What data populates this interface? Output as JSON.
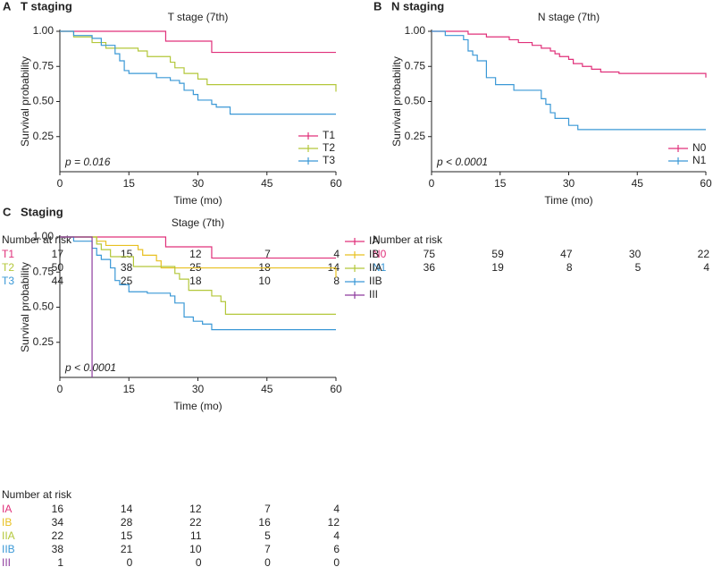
{
  "chart_data": [
    {
      "type": "step",
      "panel": "A",
      "heading": "T staging",
      "title": "T stage (7th)",
      "xlabel": "Time (mo)",
      "ylabel": "Survival probability",
      "xlim": [
        0,
        60
      ],
      "xticks": [
        0,
        15,
        30,
        45,
        60
      ],
      "ylim": [
        0,
        1
      ],
      "yticks": [
        0.25,
        {
          "value": 0.5,
          "label": "0.50"
        },
        0.75,
        {
          "value": 1,
          "label": "1.00"
        }
      ],
      "annotation": "p = 0.016",
      "legend": "lower right",
      "series": [
        {
          "name": "T1",
          "color": "#e0307a",
          "x": [
            0,
            23,
            33,
            60
          ],
          "values": [
            1,
            0.93,
            0.85,
            0.85
          ]
        },
        {
          "name": "T2",
          "color": "#b3c73a",
          "x": [
            0,
            3,
            7,
            10,
            17,
            19,
            24,
            25,
            27,
            30,
            32,
            60
          ],
          "values": [
            1,
            0.96,
            0.92,
            0.88,
            0.86,
            0.82,
            0.78,
            0.74,
            0.7,
            0.66,
            0.62,
            0.57
          ]
        },
        {
          "name": "T3",
          "color": "#3a98d6",
          "x": [
            0,
            3,
            7,
            9,
            12,
            13,
            14,
            15,
            21,
            24,
            26,
            27,
            29,
            30,
            33,
            34,
            37,
            60
          ],
          "values": [
            1,
            0.97,
            0.95,
            0.9,
            0.84,
            0.79,
            0.72,
            0.7,
            0.67,
            0.65,
            0.63,
            0.58,
            0.55,
            0.51,
            0.48,
            0.46,
            0.41,
            0.41
          ]
        }
      ],
      "risk_table": {
        "title": "Number at risk",
        "rows": [
          [
            17,
            15,
            12,
            7,
            4
          ],
          [
            50,
            38,
            25,
            18,
            14
          ],
          [
            44,
            25,
            18,
            10,
            8
          ]
        ]
      }
    },
    {
      "type": "step",
      "panel": "B",
      "heading": "N staging",
      "title": "N stage (7th)",
      "xlabel": "Time (mo)",
      "ylabel": "Survival probability",
      "xlim": [
        0,
        60
      ],
      "xticks": [
        0,
        15,
        30,
        45,
        60
      ],
      "ylim": [
        0,
        1
      ],
      "yticks": [
        0.25,
        {
          "value": 0.5,
          "label": "0.50"
        },
        0.75,
        {
          "value": 1,
          "label": "1.00"
        }
      ],
      "annotation": "p < 0.0001",
      "legend": "lower right",
      "series": [
        {
          "name": "N0",
          "color": "#e0307a",
          "x": [
            0,
            8,
            12,
            17,
            19,
            22,
            24,
            26,
            27,
            28,
            30,
            31,
            33,
            35,
            37,
            41,
            59,
            60
          ],
          "values": [
            1,
            0.98,
            0.96,
            0.94,
            0.92,
            0.9,
            0.88,
            0.86,
            0.84,
            0.82,
            0.8,
            0.77,
            0.75,
            0.73,
            0.71,
            0.7,
            0.7,
            0.67
          ]
        },
        {
          "name": "N1",
          "color": "#3a98d6",
          "x": [
            0,
            3,
            7,
            8,
            9,
            10,
            12,
            14,
            18,
            24,
            25,
            26,
            27,
            30,
            32,
            60
          ],
          "values": [
            1,
            0.97,
            0.94,
            0.86,
            0.83,
            0.79,
            0.67,
            0.62,
            0.58,
            0.52,
            0.48,
            0.42,
            0.38,
            0.33,
            0.3,
            0.3
          ]
        }
      ],
      "risk_table": {
        "title": "Number at risk",
        "rows": [
          [
            75,
            59,
            47,
            30,
            22
          ],
          [
            36,
            19,
            8,
            5,
            4
          ]
        ]
      }
    },
    {
      "type": "step",
      "panel": "C",
      "heading": "Staging",
      "title": "Stage (7th)",
      "xlabel": "Time (mo)",
      "ylabel": "Survival probability",
      "xlim": [
        0,
        60
      ],
      "xticks": [
        0,
        15,
        30,
        45,
        60
      ],
      "ylim": [
        0,
        1
      ],
      "yticks": [
        0.25,
        {
          "value": 0.5,
          "label": "0.50"
        },
        0.75,
        {
          "value": 1,
          "label": "1.00"
        }
      ],
      "annotation": "p < 0.0001",
      "legend": "outside right",
      "series": [
        {
          "name": "IA",
          "color": "#e0307a",
          "x": [
            0,
            23,
            33,
            60
          ],
          "values": [
            1,
            0.93,
            0.85,
            0.85
          ]
        },
        {
          "name": "IB",
          "color": "#e8c020",
          "x": [
            0,
            8,
            10,
            17,
            18,
            21,
            22,
            59,
            60
          ],
          "values": [
            1,
            0.97,
            0.94,
            0.91,
            0.87,
            0.83,
            0.78,
            0.78,
            0.71
          ]
        },
        {
          "name": "IIA",
          "color": "#b3c73a",
          "x": [
            0,
            8,
            9,
            11,
            16,
            25,
            26,
            28,
            33,
            35,
            36,
            60
          ],
          "values": [
            1,
            0.95,
            0.91,
            0.86,
            0.79,
            0.74,
            0.7,
            0.62,
            0.58,
            0.54,
            0.45,
            0.45
          ]
        },
        {
          "name": "IIB",
          "color": "#3a98d6",
          "x": [
            0,
            3,
            7,
            8,
            9,
            11,
            12,
            13,
            15,
            19,
            24,
            25,
            27,
            29,
            31,
            33,
            60
          ],
          "values": [
            1,
            0.97,
            0.92,
            0.87,
            0.84,
            0.78,
            0.69,
            0.66,
            0.61,
            0.6,
            0.58,
            0.53,
            0.43,
            0.4,
            0.38,
            0.34,
            0.34
          ]
        },
        {
          "name": "III",
          "color": "#8e3b9e",
          "x": [
            0,
            7
          ],
          "values": [
            1,
            0
          ]
        }
      ],
      "risk_table": {
        "title": "Number at risk",
        "rows": [
          [
            16,
            14,
            12,
            7,
            4
          ],
          [
            34,
            28,
            22,
            16,
            12
          ],
          [
            22,
            15,
            11,
            5,
            4
          ],
          [
            38,
            21,
            10,
            7,
            6
          ],
          [
            1,
            0,
            0,
            0,
            0
          ]
        ]
      }
    }
  ]
}
